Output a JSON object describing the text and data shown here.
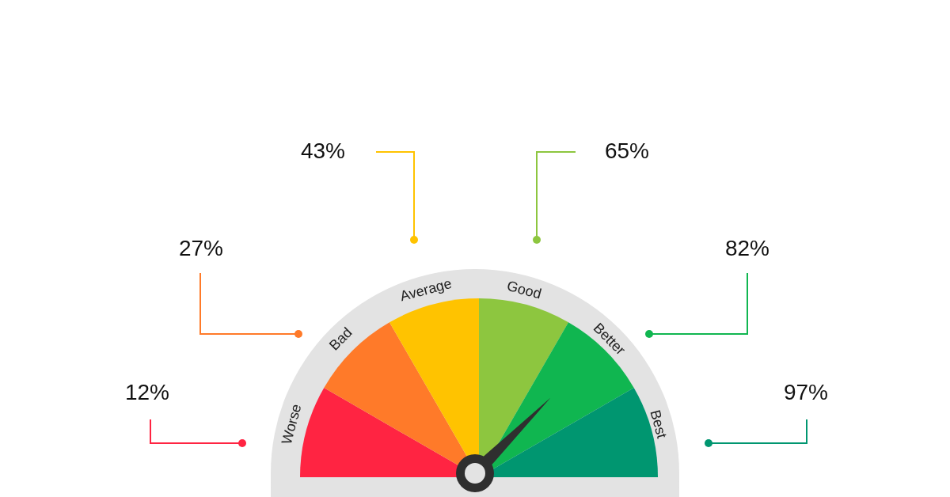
{
  "chart_data": {
    "type": "pie",
    "categories": [
      "Worse",
      "Bad",
      "Average",
      "Good",
      "Better",
      "Best"
    ],
    "values": [
      16.67,
      16.67,
      16.67,
      16.67,
      16.67,
      16.67
    ],
    "colors": [
      "#ff2442",
      "#ff7a29",
      "#ffc300",
      "#8dc63f",
      "#10b650",
      "#009670"
    ],
    "annotations": [
      "12%",
      "27%",
      "43%",
      "65%",
      "82%",
      "97%"
    ],
    "needle": "Better"
  }
}
